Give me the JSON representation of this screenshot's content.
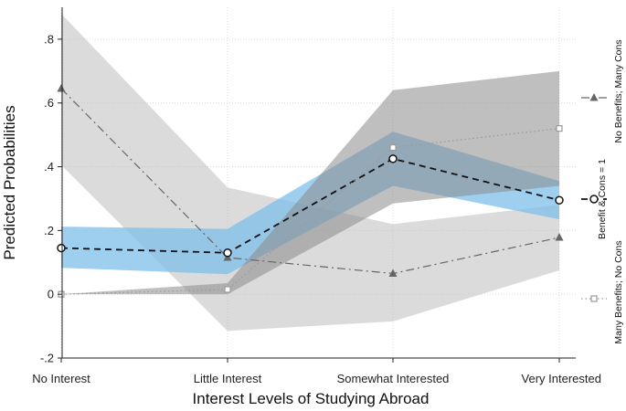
{
  "chart_data": {
    "type": "line",
    "xlabel": "Interest Levels of Studying Abroad",
    "ylabel": "Predicted Probabilities",
    "categories": [
      "No Interest",
      "Little Interest",
      "Somewhat Interested",
      "Very Interested"
    ],
    "ylim": [
      -0.2,
      0.9
    ],
    "yticks": [
      -0.2,
      0,
      0.2,
      0.4,
      0.6,
      0.8
    ],
    "ytick_labels": [
      "-.2",
      "0",
      ".2",
      ".4",
      ".6",
      ".8"
    ],
    "grid": true,
    "legend_position": "right, vertical",
    "series": [
      {
        "name": "No Benefits; Many Cons",
        "values": [
          0.645,
          0.115,
          0.065,
          0.178
        ],
        "ci_low": [
          0.405,
          -0.115,
          -0.085,
          0.075
        ],
        "ci_high": [
          0.88,
          0.335,
          0.22,
          0.28
        ],
        "line_color": "#666666",
        "band_color": "#bdbdbd",
        "marker": "triangle",
        "line_style": "dash-dot"
      },
      {
        "name": "Benefit & Cons = 1",
        "values": [
          0.145,
          0.13,
          0.425,
          0.295
        ],
        "ci_low": [
          0.083,
          0.063,
          0.34,
          0.235
        ],
        "ci_high": [
          0.212,
          0.205,
          0.51,
          0.355
        ],
        "line_color": "#111111",
        "band_color": "#7fbfea",
        "marker": "circle",
        "line_style": "dashed"
      },
      {
        "name": "Many Benefits; No Cons",
        "values": [
          0.0,
          0.015,
          0.46,
          0.52
        ],
        "ci_low": [
          0.0,
          0.0,
          0.285,
          0.34
        ],
        "ci_high": [
          0.0,
          0.035,
          0.64,
          0.7
        ],
        "line_color": "#999999",
        "band_color": "#8a8a8a",
        "marker": "square",
        "line_style": "dotted"
      }
    ]
  }
}
